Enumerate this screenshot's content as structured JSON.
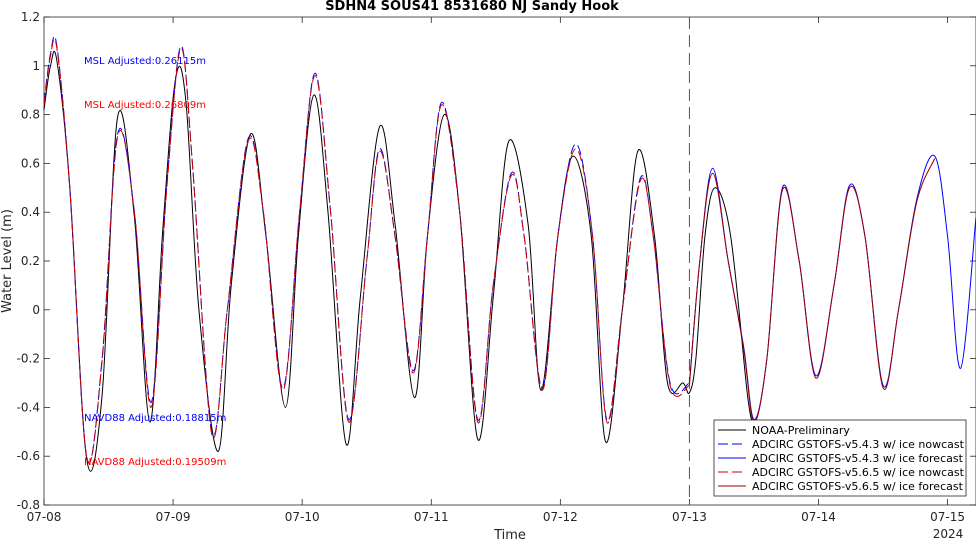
{
  "chart_data": {
    "type": "line",
    "title": "SDHN4 SOUS41 8531680 NJ Sandy Hook",
    "xlabel": "Time",
    "ylabel": "Water Level (m)",
    "x_unit": "days",
    "xlim": [
      0,
      7.22
    ],
    "ylim": [
      -0.8,
      1.2
    ],
    "x_ticks": [
      {
        "x": 0,
        "label": "07-08"
      },
      {
        "x": 1,
        "label": "07-09"
      },
      {
        "x": 2,
        "label": "07-10"
      },
      {
        "x": 3,
        "label": "07-11"
      },
      {
        "x": 4,
        "label": "07-12"
      },
      {
        "x": 5,
        "label": "07-13"
      },
      {
        "x": 6,
        "label": "07-14"
      },
      {
        "x": 7,
        "label": "07-15"
      }
    ],
    "x_year_label": "2024",
    "y_ticks": [
      -0.8,
      -0.6,
      -0.4,
      -0.2,
      0,
      0.2,
      0.4,
      0.6,
      0.8,
      1,
      1.2
    ],
    "forecast_start_x": 5.0,
    "grid": false,
    "legend_position": "bottom-right",
    "annotations": [
      {
        "text": "MSL Adjusted:0.26115m",
        "color": "#0000ff"
      },
      {
        "text": "MSL Adjusted:0.26809m",
        "color": "#ff0000"
      },
      {
        "text": "NAVD88 Adjusted:0.18815m",
        "color": "#0000ff"
      },
      {
        "text": "NAVD88 Adjusted:0.19509m",
        "color": "#ff0000"
      }
    ],
    "series": [
      {
        "name": "NOAA-Preliminary",
        "color": "#000000",
        "dash": "solid",
        "x": [
          0.0,
          0.05,
          0.1,
          0.2,
          0.33,
          0.45,
          0.57,
          0.7,
          0.82,
          0.92,
          1.02,
          1.1,
          1.2,
          1.35,
          1.45,
          1.6,
          1.72,
          1.87,
          1.97,
          2.09,
          2.2,
          2.34,
          2.45,
          2.6,
          2.72,
          2.87,
          2.97,
          3.1,
          3.22,
          3.36,
          3.48,
          3.6,
          3.75,
          3.85,
          3.98,
          4.1,
          4.24,
          4.35,
          4.48,
          4.6,
          4.73,
          4.83,
          4.95,
          5.0,
          5.05,
          5.12,
          5.2,
          5.32,
          5.45,
          5.5
        ],
        "y": [
          0.82,
          1.0,
          1.02,
          0.5,
          -0.61,
          -0.35,
          0.79,
          0.38,
          -0.46,
          0.33,
          0.95,
          0.85,
          0.0,
          -0.58,
          0.1,
          0.72,
          0.3,
          -0.4,
          0.3,
          0.88,
          0.4,
          -0.55,
          0.05,
          0.75,
          0.35,
          -0.36,
          0.3,
          0.8,
          0.4,
          -0.53,
          0.05,
          0.69,
          0.35,
          -0.33,
          0.3,
          0.63,
          0.3,
          -0.54,
          0.0,
          0.65,
          0.3,
          -0.3,
          -0.3,
          -0.34,
          -0.2,
          0.3,
          0.5,
          0.3,
          -0.35,
          -0.48
        ]
      },
      {
        "name": "ADCIRC GSTOFS-v5.4.3 w/ ice nowcast",
        "color": "#0000ff",
        "dash": "dashed",
        "x": [
          0.0,
          0.05,
          0.1,
          0.2,
          0.33,
          0.45,
          0.57,
          0.7,
          0.83,
          0.95,
          1.06,
          1.15,
          1.3,
          1.42,
          1.58,
          1.7,
          1.85,
          1.98,
          2.1,
          2.22,
          2.36,
          2.5,
          2.6,
          2.72,
          2.86,
          2.97,
          3.08,
          3.22,
          3.36,
          3.48,
          3.62,
          3.72,
          3.86,
          3.98,
          4.12,
          4.25,
          4.36,
          4.48,
          4.62,
          4.72,
          4.85,
          5.0
        ],
        "y": [
          0.85,
          1.05,
          1.08,
          0.5,
          -0.6,
          -0.2,
          0.72,
          0.4,
          -0.38,
          0.5,
          1.08,
          0.6,
          -0.5,
          0.0,
          0.7,
          0.4,
          -0.32,
          0.4,
          0.97,
          0.4,
          -0.45,
          0.2,
          0.66,
          0.3,
          -0.25,
          0.3,
          0.85,
          0.4,
          -0.45,
          0.1,
          0.56,
          0.3,
          -0.32,
          0.3,
          0.68,
          0.3,
          -0.45,
          0.0,
          0.54,
          0.3,
          -0.3,
          -0.3
        ]
      },
      {
        "name": "ADCIRC GSTOFS-v5.4.3 w/ ice forecast",
        "color": "#0000ff",
        "dash": "solid",
        "x": [
          5.0,
          5.08,
          5.18,
          5.3,
          5.42,
          5.5,
          5.6,
          5.72,
          5.85,
          5.98,
          6.12,
          6.24,
          6.36,
          6.5,
          6.62,
          6.76,
          6.9,
          7.0,
          7.1,
          7.22
        ],
        "y": [
          -0.3,
          0.2,
          0.58,
          0.2,
          -0.15,
          -0.45,
          -0.2,
          0.5,
          0.2,
          -0.27,
          0.1,
          0.51,
          0.3,
          -0.31,
          0.0,
          0.45,
          0.63,
          0.3,
          -0.24,
          0.38
        ]
      },
      {
        "name": "ADCIRC GSTOFS-v5.6.5 w/ ice nowcast",
        "color": "#cc0000",
        "dash": "dashed",
        "x": [
          0.0,
          0.05,
          0.1,
          0.2,
          0.33,
          0.45,
          0.57,
          0.7,
          0.83,
          0.95,
          1.06,
          1.15,
          1.3,
          1.42,
          1.58,
          1.7,
          1.85,
          1.98,
          2.1,
          2.22,
          2.36,
          2.5,
          2.6,
          2.72,
          2.86,
          2.97,
          3.08,
          3.22,
          3.36,
          3.48,
          3.62,
          3.72,
          3.86,
          3.98,
          4.12,
          4.25,
          4.36,
          4.48,
          4.62,
          4.72,
          4.85,
          5.0
        ],
        "y": [
          0.84,
          1.04,
          1.07,
          0.5,
          -0.6,
          -0.21,
          0.71,
          0.4,
          -0.4,
          0.49,
          1.07,
          0.6,
          -0.51,
          0.0,
          0.69,
          0.4,
          -0.33,
          0.4,
          0.96,
          0.4,
          -0.46,
          0.2,
          0.65,
          0.3,
          -0.26,
          0.3,
          0.84,
          0.4,
          -0.46,
          0.1,
          0.55,
          0.3,
          -0.33,
          0.3,
          0.66,
          0.3,
          -0.46,
          0.0,
          0.53,
          0.3,
          -0.31,
          -0.31
        ]
      },
      {
        "name": "ADCIRC GSTOFS-v5.6.5 w/ ice forecast",
        "color": "#990000",
        "dash": "solid",
        "x": [
          5.0,
          5.08,
          5.18,
          5.3,
          5.42,
          5.5,
          5.6,
          5.72,
          5.85,
          5.98,
          6.12,
          6.24,
          6.36,
          6.5,
          6.62,
          6.76,
          6.9
        ],
        "y": [
          -0.31,
          0.2,
          0.56,
          0.2,
          -0.16,
          -0.46,
          -0.2,
          0.49,
          0.2,
          -0.28,
          0.1,
          0.5,
          0.3,
          -0.32,
          0.0,
          0.44,
          0.62
        ]
      }
    ]
  }
}
